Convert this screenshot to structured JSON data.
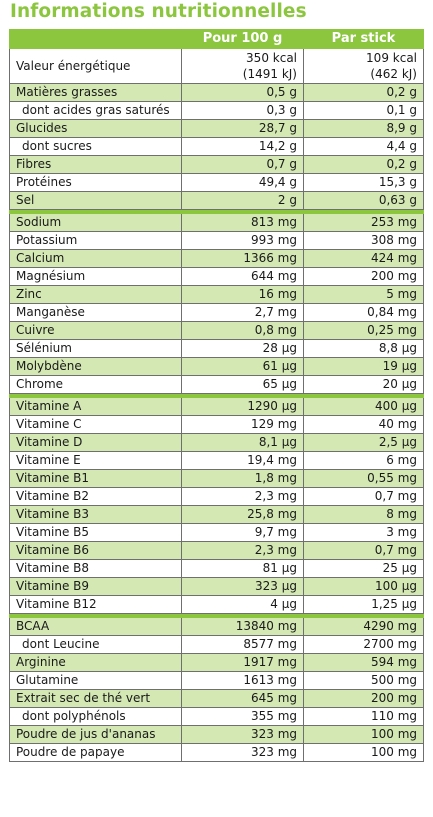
{
  "title": "Informations nutritionnelles",
  "columns": {
    "per100": "Pour 100 g",
    "perStick": "Par stick"
  },
  "energy": {
    "label": "Valeur énergétique",
    "per100_kcal": "350 kcal",
    "per100_kj": "(1491 kJ)",
    "perStick_kcal": "109 kcal",
    "perStick_kj": "(462 kJ)"
  },
  "groups": [
    [
      {
        "label": "Matières grasses",
        "per100": "0,5 g",
        "perStick": "0,2 g",
        "shade": "g",
        "indent": false
      },
      {
        "label": "dont acides gras saturés",
        "per100": "0,3 g",
        "perStick": "0,1 g",
        "shade": "w",
        "indent": true
      },
      {
        "label": "Glucides",
        "per100": "28,7 g",
        "perStick": "8,9 g",
        "shade": "g",
        "indent": false
      },
      {
        "label": "dont sucres",
        "per100": "14,2 g",
        "perStick": "4,4 g",
        "shade": "w",
        "indent": true
      },
      {
        "label": "Fibres",
        "per100": "0,7 g",
        "perStick": "0,2 g",
        "shade": "g",
        "indent": false
      },
      {
        "label": "Protéines",
        "per100": "49,4 g",
        "perStick": "15,3 g",
        "shade": "w",
        "indent": false
      },
      {
        "label": "Sel",
        "per100": "2 g",
        "perStick": "0,63 g",
        "shade": "g",
        "indent": false
      }
    ],
    [
      {
        "label": "Sodium",
        "per100": "813 mg",
        "perStick": "253 mg",
        "shade": "g",
        "indent": false
      },
      {
        "label": "Potassium",
        "per100": "993 mg",
        "perStick": "308 mg",
        "shade": "w",
        "indent": false
      },
      {
        "label": "Calcium",
        "per100": "1366 mg",
        "perStick": "424 mg",
        "shade": "g",
        "indent": false
      },
      {
        "label": "Magnésium",
        "per100": "644 mg",
        "perStick": "200 mg",
        "shade": "w",
        "indent": false
      },
      {
        "label": "Zinc",
        "per100": "16 mg",
        "perStick": "5 mg",
        "shade": "g",
        "indent": false
      },
      {
        "label": "Manganèse",
        "per100": "2,7 mg",
        "perStick": "0,84 mg",
        "shade": "w",
        "indent": false
      },
      {
        "label": "Cuivre",
        "per100": "0,8 mg",
        "perStick": "0,25 mg",
        "shade": "g",
        "indent": false
      },
      {
        "label": "Sélénium",
        "per100": "28 µg",
        "perStick": "8,8 µg",
        "shade": "w",
        "indent": false
      },
      {
        "label": "Molybdène",
        "per100": "61 µg",
        "perStick": "19 µg",
        "shade": "g",
        "indent": false
      },
      {
        "label": "Chrome",
        "per100": "65 µg",
        "perStick": "20 µg",
        "shade": "w",
        "indent": false
      }
    ],
    [
      {
        "label": "Vitamine A",
        "per100": "1290 µg",
        "perStick": "400 µg",
        "shade": "g",
        "indent": false
      },
      {
        "label": "Vitamine C",
        "per100": "129 mg",
        "perStick": "40 mg",
        "shade": "w",
        "indent": false
      },
      {
        "label": "Vitamine D",
        "per100": "8,1 µg",
        "perStick": "2,5 µg",
        "shade": "g",
        "indent": false
      },
      {
        "label": "Vitamine E",
        "per100": "19,4  mg",
        "perStick": "6 mg",
        "shade": "w",
        "indent": false
      },
      {
        "label": "Vitamine B1",
        "per100": "1,8 mg",
        "perStick": "0,55 mg",
        "shade": "g",
        "indent": false
      },
      {
        "label": "Vitamine B2",
        "per100": "2,3 mg",
        "perStick": "0,7 mg",
        "shade": "w",
        "indent": false
      },
      {
        "label": "Vitamine B3",
        "per100": "25,8 mg",
        "perStick": "8 mg",
        "shade": "g",
        "indent": false
      },
      {
        "label": "Vitamine B5",
        "per100": "9,7 mg",
        "perStick": "3 mg",
        "shade": "w",
        "indent": false
      },
      {
        "label": "Vitamine B6",
        "per100": "2,3 mg",
        "perStick": "0,7 mg",
        "shade": "g",
        "indent": false
      },
      {
        "label": "Vitamine B8",
        "per100": "81 µg",
        "perStick": "25 µg",
        "shade": "w",
        "indent": false
      },
      {
        "label": "Vitamine B9",
        "per100": "323 µg",
        "perStick": "100 µg",
        "shade": "g",
        "indent": false
      },
      {
        "label": "Vitamine B12",
        "per100": "4 µg",
        "perStick": "1,25 µg",
        "shade": "w",
        "indent": false
      }
    ],
    [
      {
        "label": "BCAA",
        "per100": "13840 mg",
        "perStick": "4290 mg",
        "shade": "g",
        "indent": false
      },
      {
        "label": "dont Leucine",
        "per100": "8577 mg",
        "perStick": "2700 mg",
        "shade": "w",
        "indent": true
      },
      {
        "label": "Arginine",
        "per100": "1917 mg",
        "perStick": "594 mg",
        "shade": "g",
        "indent": false
      },
      {
        "label": "Glutamine",
        "per100": "1613 mg",
        "perStick": "500 mg",
        "shade": "w",
        "indent": false
      },
      {
        "label": "Extrait sec de thé vert",
        "per100": "645 mg",
        "perStick": "200 mg",
        "shade": "g",
        "indent": false
      },
      {
        "label": "dont polyphénols",
        "per100": "355 mg",
        "perStick": "110 mg",
        "shade": "w",
        "indent": true
      },
      {
        "label": "Poudre de jus d'ananas",
        "per100": "323 mg",
        "perStick": "100 mg",
        "shade": "g",
        "indent": false
      },
      {
        "label": "Poudre de papaye",
        "per100": "323 mg",
        "perStick": "100 mg",
        "shade": "w",
        "indent": false
      }
    ]
  ],
  "colors": {
    "accent": "#8cc63f",
    "rowShade": "#d4e8b4",
    "border": "#6f6f6f"
  }
}
